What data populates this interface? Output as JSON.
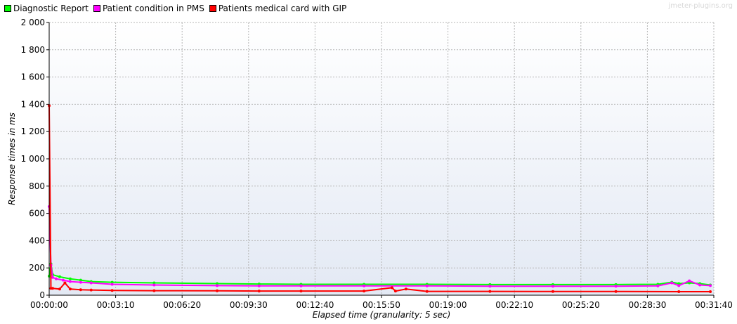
{
  "watermark": "jmeter-plugins.org",
  "chart_data": {
    "type": "line",
    "title": "",
    "xlabel": "Elapsed time (granularity: 5 sec)",
    "ylabel": "Response times in ms",
    "ylim": [
      0,
      2000
    ],
    "xlim_seconds": [
      0,
      1900
    ],
    "grid": true,
    "legend_position": "top-left",
    "y_ticks": [
      "0",
      "200",
      "400",
      "600",
      "800",
      "1 000",
      "1 200",
      "1 400",
      "1 600",
      "1 800",
      "2 000"
    ],
    "x_ticks": [
      "00:00:00",
      "00:03:10",
      "00:06:20",
      "00:09:30",
      "00:12:40",
      "00:15:50",
      "00:19:00",
      "00:22:10",
      "00:25:20",
      "00:28:30",
      "00:31:40"
    ],
    "series": [
      {
        "name": "Diagnostic Report",
        "color": "#00ff00",
        "x": [
          "00:00:00",
          "00:00:05",
          "00:00:10",
          "00:00:30",
          "00:01:00",
          "00:01:30",
          "00:02:00",
          "00:03:00",
          "00:05:00",
          "00:08:00",
          "00:10:00",
          "00:12:00",
          "00:15:00",
          "00:18:00",
          "00:21:00",
          "00:24:00",
          "00:27:00",
          "00:29:00",
          "00:29:40",
          "00:30:00",
          "00:30:30",
          "00:31:00",
          "00:31:30"
        ],
        "values": [
          140,
          230,
          150,
          135,
          120,
          110,
          100,
          95,
          90,
          85,
          82,
          80,
          80,
          80,
          78,
          78,
          78,
          80,
          95,
          85,
          90,
          85,
          75
        ]
      },
      {
        "name": "Patient condition in PMS",
        "color": "#ff00ff",
        "x": [
          "00:00:00",
          "00:00:05",
          "00:00:10",
          "00:00:20",
          "00:00:40",
          "00:01:00",
          "00:01:30",
          "00:02:00",
          "00:03:00",
          "00:05:00",
          "00:08:00",
          "00:10:00",
          "00:12:00",
          "00:15:00",
          "00:18:00",
          "00:21:00",
          "00:24:00",
          "00:27:00",
          "00:29:00",
          "00:29:40",
          "00:30:00",
          "00:30:30",
          "00:31:00",
          "00:31:30"
        ],
        "values": [
          650,
          220,
          130,
          120,
          110,
          100,
          95,
          90,
          80,
          75,
          70,
          68,
          68,
          68,
          68,
          66,
          66,
          66,
          68,
          90,
          70,
          105,
          75,
          70
        ]
      },
      {
        "name": "Patients medical card with GIP",
        "color": "#ff0000",
        "x": [
          "00:00:00",
          "00:00:05",
          "00:00:10",
          "00:00:30",
          "00:00:45",
          "00:01:00",
          "00:01:30",
          "00:02:00",
          "00:03:00",
          "00:05:00",
          "00:08:00",
          "00:10:00",
          "00:12:00",
          "00:15:00",
          "00:16:20",
          "00:16:30",
          "00:17:00",
          "00:18:00",
          "00:21:00",
          "00:24:00",
          "00:27:00",
          "00:30:00",
          "00:31:30"
        ],
        "values": [
          1390,
          50,
          50,
          45,
          90,
          45,
          40,
          38,
          35,
          33,
          32,
          30,
          30,
          30,
          55,
          30,
          45,
          28,
          28,
          27,
          27,
          26,
          26
        ]
      }
    ]
  }
}
